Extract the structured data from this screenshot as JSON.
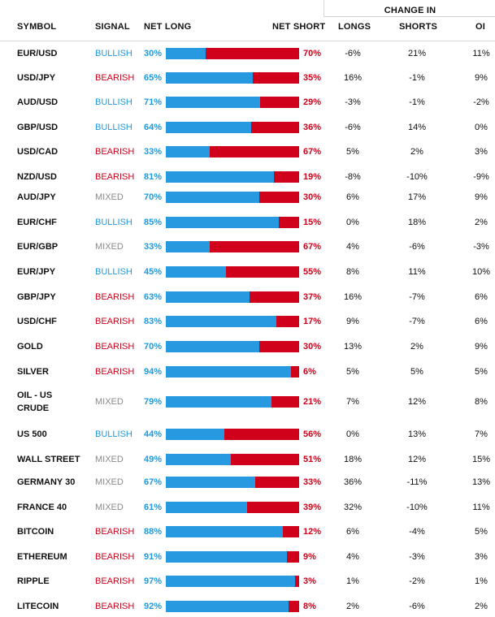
{
  "header": {
    "change_in": "CHANGE IN",
    "symbol": "SYMBOL",
    "signal": "SIGNAL",
    "net_long": "NET LONG",
    "net_short": "NET SHORT",
    "longs": "LONGS",
    "shorts": "SHORTS",
    "oi": "OI"
  },
  "colors": {
    "long": "#2699e0",
    "short": "#d0021b",
    "mixed": "#8a8a8a"
  },
  "rows": [
    {
      "symbol": "EUR/USD",
      "signal": "BULLISH",
      "long": 30,
      "short": 70,
      "longs": "-6%",
      "shorts": "21%",
      "oi": "11%"
    },
    {
      "symbol": "USD/JPY",
      "signal": "BEARISH",
      "long": 65,
      "short": 35,
      "longs": "16%",
      "shorts": "-1%",
      "oi": "9%"
    },
    {
      "symbol": "AUD/USD",
      "signal": "BULLISH",
      "long": 71,
      "short": 29,
      "longs": "-3%",
      "shorts": "-1%",
      "oi": "-2%"
    },
    {
      "symbol": "GBP/USD",
      "signal": "BULLISH",
      "long": 64,
      "short": 36,
      "longs": "-6%",
      "shorts": "14%",
      "oi": "0%"
    },
    {
      "symbol": "USD/CAD",
      "signal": "BEARISH",
      "long": 33,
      "short": 67,
      "longs": "5%",
      "shorts": "2%",
      "oi": "3%"
    },
    {
      "symbol": "NZD/USD",
      "signal": "BEARISH",
      "long": 81,
      "short": 19,
      "longs": "-8%",
      "shorts": "-10%",
      "oi": "-9%"
    },
    {
      "symbol": "AUD/JPY",
      "signal": "MIXED",
      "long": 70,
      "short": 30,
      "longs": "6%",
      "shorts": "17%",
      "oi": "9%"
    },
    {
      "symbol": "EUR/CHF",
      "signal": "BULLISH",
      "long": 85,
      "short": 15,
      "longs": "0%",
      "shorts": "18%",
      "oi": "2%"
    },
    {
      "symbol": "EUR/GBP",
      "signal": "MIXED",
      "long": 33,
      "short": 67,
      "longs": "4%",
      "shorts": "-6%",
      "oi": "-3%"
    },
    {
      "symbol": "EUR/JPY",
      "signal": "BULLISH",
      "long": 45,
      "short": 55,
      "longs": "8%",
      "shorts": "11%",
      "oi": "10%"
    },
    {
      "symbol": "GBP/JPY",
      "signal": "BEARISH",
      "long": 63,
      "short": 37,
      "longs": "16%",
      "shorts": "-7%",
      "oi": "6%"
    },
    {
      "symbol": "USD/CHF",
      "signal": "BEARISH",
      "long": 83,
      "short": 17,
      "longs": "9%",
      "shorts": "-7%",
      "oi": "6%"
    },
    {
      "symbol": "GOLD",
      "signal": "BEARISH",
      "long": 70,
      "short": 30,
      "longs": "13%",
      "shorts": "2%",
      "oi": "9%"
    },
    {
      "symbol": "SILVER",
      "signal": "BEARISH",
      "long": 94,
      "short": 6,
      "longs": "5%",
      "shorts": "5%",
      "oi": "5%"
    },
    {
      "symbol": "OIL - US CRUDE",
      "signal": "MIXED",
      "long": 79,
      "short": 21,
      "longs": "7%",
      "shorts": "12%",
      "oi": "8%"
    },
    {
      "symbol": "US 500",
      "signal": "BULLISH",
      "long": 44,
      "short": 56,
      "longs": "0%",
      "shorts": "13%",
      "oi": "7%"
    },
    {
      "symbol": "WALL STREET",
      "signal": "MIXED",
      "long": 49,
      "short": 51,
      "longs": "18%",
      "shorts": "12%",
      "oi": "15%"
    },
    {
      "symbol": "GERMANY 30",
      "signal": "MIXED",
      "long": 67,
      "short": 33,
      "longs": "36%",
      "shorts": "-11%",
      "oi": "13%"
    },
    {
      "symbol": "FRANCE 40",
      "signal": "MIXED",
      "long": 61,
      "short": 39,
      "longs": "32%",
      "shorts": "-10%",
      "oi": "11%"
    },
    {
      "symbol": "BITCOIN",
      "signal": "BEARISH",
      "long": 88,
      "short": 12,
      "longs": "6%",
      "shorts": "-4%",
      "oi": "5%"
    },
    {
      "symbol": "ETHEREUM",
      "signal": "BEARISH",
      "long": 91,
      "short": 9,
      "longs": "4%",
      "shorts": "-3%",
      "oi": "3%"
    },
    {
      "symbol": "RIPPLE",
      "signal": "BEARISH",
      "long": 97,
      "short": 3,
      "longs": "1%",
      "shorts": "-2%",
      "oi": "1%"
    },
    {
      "symbol": "LITECOIN",
      "signal": "BEARISH",
      "long": 92,
      "short": 8,
      "longs": "2%",
      "shorts": "-6%",
      "oi": "2%"
    }
  ]
}
